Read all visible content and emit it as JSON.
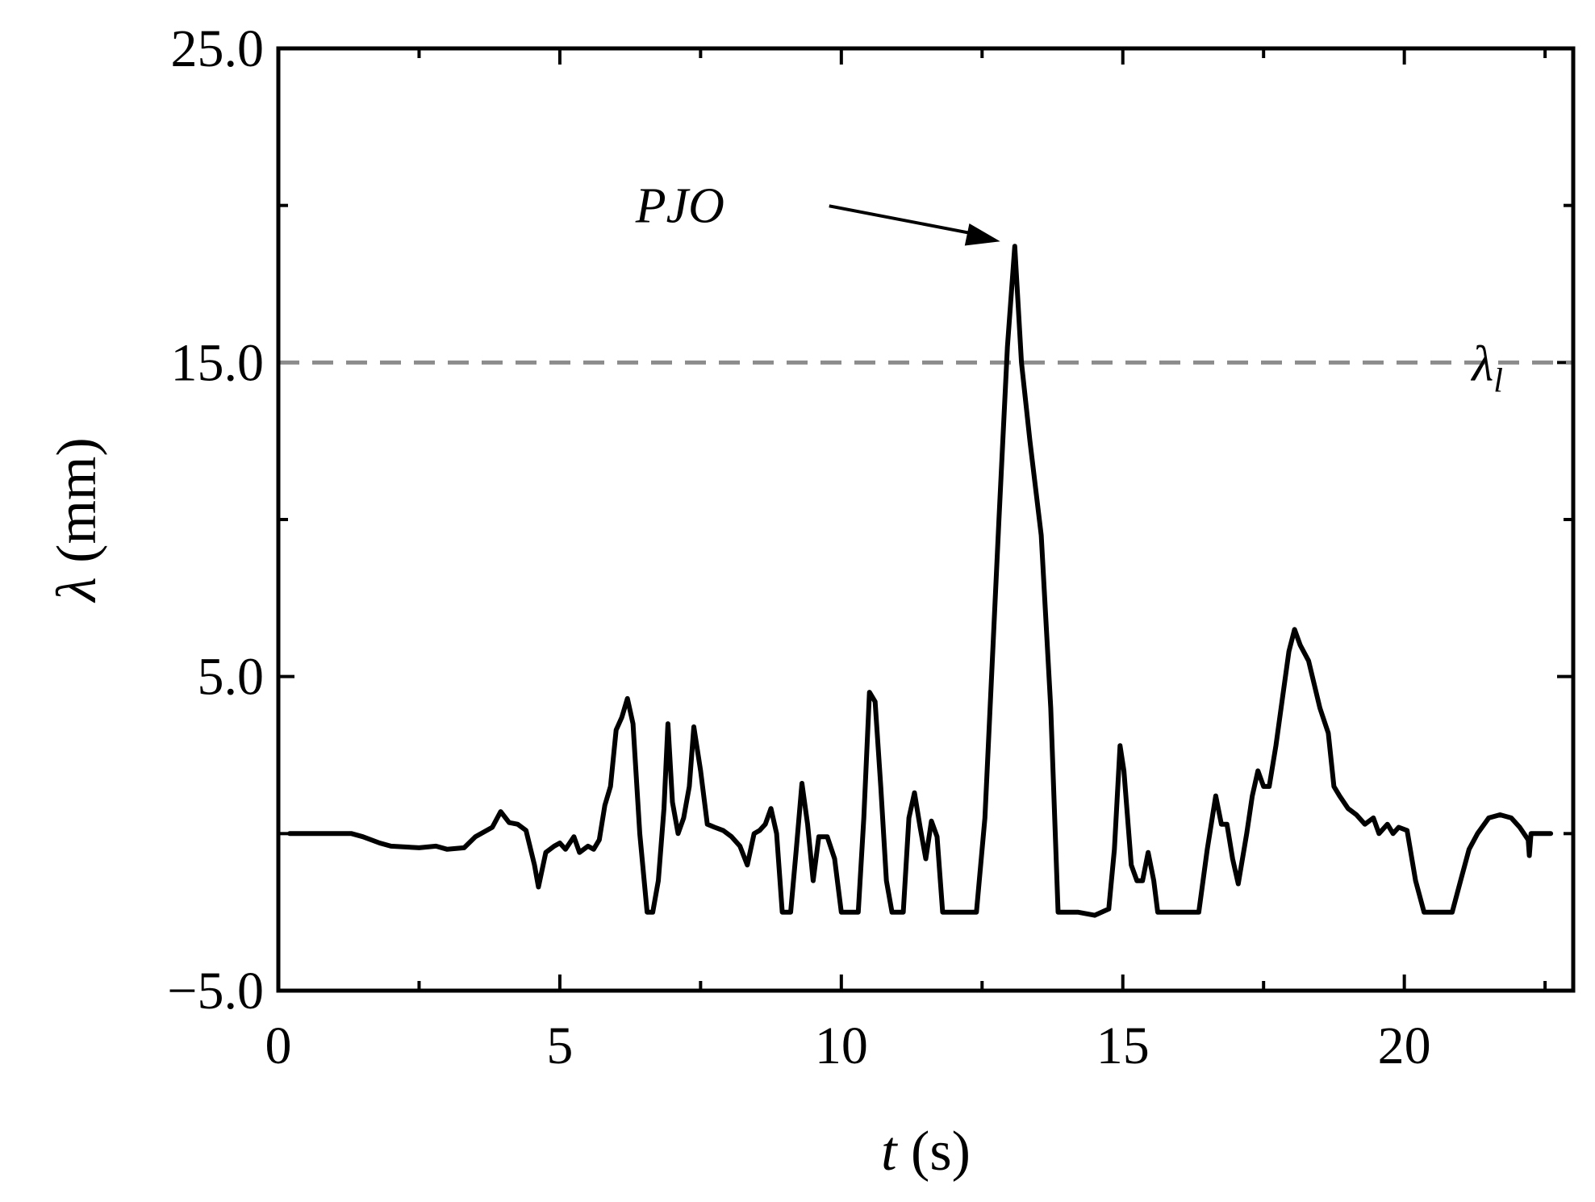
{
  "chart_data": {
    "type": "line",
    "title": "",
    "xlabel": {
      "symbol": "t",
      "unit": " (s)"
    },
    "ylabel": {
      "symbol": "λ",
      "unit": " (mm)"
    },
    "xlim": [
      0,
      23
    ],
    "ylim": [
      -5,
      25
    ],
    "xticks": [
      0,
      5,
      10,
      15,
      20
    ],
    "yticks": [
      -5,
      5,
      15,
      25
    ],
    "xtick_labels": [
      "0",
      "5",
      "10",
      "15",
      "20"
    ],
    "ytick_labels": [
      "−5.0",
      "5.0",
      "15.0",
      "25.0"
    ],
    "grid": false,
    "series": [
      {
        "color": "#000000",
        "points": [
          [
            0.2,
            0.0
          ],
          [
            1.3,
            0.0
          ],
          [
            1.5,
            -0.1
          ],
          [
            1.8,
            -0.3
          ],
          [
            2.0,
            -0.4
          ],
          [
            2.5,
            -0.45
          ],
          [
            2.8,
            -0.4
          ],
          [
            3.0,
            -0.5
          ],
          [
            3.3,
            -0.45
          ],
          [
            3.5,
            -0.1
          ],
          [
            3.8,
            0.2
          ],
          [
            3.95,
            0.7
          ],
          [
            4.1,
            0.35
          ],
          [
            4.25,
            0.3
          ],
          [
            4.4,
            0.1
          ],
          [
            4.55,
            -1.0
          ],
          [
            4.62,
            -1.7
          ],
          [
            4.75,
            -0.6
          ],
          [
            4.9,
            -0.4
          ],
          [
            5.0,
            -0.3
          ],
          [
            5.1,
            -0.5
          ],
          [
            5.25,
            -0.1
          ],
          [
            5.35,
            -0.6
          ],
          [
            5.5,
            -0.4
          ],
          [
            5.6,
            -0.5
          ],
          [
            5.7,
            -0.2
          ],
          [
            5.8,
            0.9
          ],
          [
            5.9,
            1.5
          ],
          [
            6.0,
            3.3
          ],
          [
            6.1,
            3.7
          ],
          [
            6.2,
            4.3
          ],
          [
            6.3,
            3.5
          ],
          [
            6.42,
            0.0
          ],
          [
            6.55,
            -2.5
          ],
          [
            6.65,
            -2.5
          ],
          [
            6.75,
            -1.5
          ],
          [
            6.85,
            0.8
          ],
          [
            6.92,
            3.5
          ],
          [
            7.0,
            1.0
          ],
          [
            7.1,
            0.0
          ],
          [
            7.2,
            0.5
          ],
          [
            7.3,
            1.5
          ],
          [
            7.38,
            3.4
          ],
          [
            7.5,
            2.0
          ],
          [
            7.62,
            0.3
          ],
          [
            7.75,
            0.2
          ],
          [
            7.9,
            0.1
          ],
          [
            8.05,
            -0.1
          ],
          [
            8.2,
            -0.4
          ],
          [
            8.33,
            -1.0
          ],
          [
            8.45,
            0.0
          ],
          [
            8.55,
            0.1
          ],
          [
            8.65,
            0.3
          ],
          [
            8.75,
            0.8
          ],
          [
            8.85,
            0.0
          ],
          [
            8.95,
            -2.5
          ],
          [
            9.1,
            -2.5
          ],
          [
            9.2,
            -0.5
          ],
          [
            9.3,
            1.6
          ],
          [
            9.4,
            0.3
          ],
          [
            9.5,
            -1.5
          ],
          [
            9.6,
            -0.1
          ],
          [
            9.75,
            -0.1
          ],
          [
            9.88,
            -0.8
          ],
          [
            10.0,
            -2.5
          ],
          [
            10.3,
            -2.5
          ],
          [
            10.4,
            0.5
          ],
          [
            10.5,
            4.5
          ],
          [
            10.6,
            4.2
          ],
          [
            10.7,
            1.5
          ],
          [
            10.8,
            -1.5
          ],
          [
            10.9,
            -2.5
          ],
          [
            11.1,
            -2.5
          ],
          [
            11.2,
            0.5
          ],
          [
            11.3,
            1.3
          ],
          [
            11.4,
            0.2
          ],
          [
            11.5,
            -0.8
          ],
          [
            11.6,
            0.4
          ],
          [
            11.7,
            -0.1
          ],
          [
            11.8,
            -2.5
          ],
          [
            12.4,
            -2.5
          ],
          [
            12.55,
            0.5
          ],
          [
            12.8,
            10.0
          ],
          [
            12.95,
            15.5
          ],
          [
            13.08,
            18.7
          ],
          [
            13.2,
            15.0
          ],
          [
            13.35,
            12.5
          ],
          [
            13.55,
            9.5
          ],
          [
            13.72,
            4.0
          ],
          [
            13.85,
            -2.5
          ],
          [
            14.2,
            -2.5
          ],
          [
            14.5,
            -2.6
          ],
          [
            14.75,
            -2.4
          ],
          [
            14.85,
            -0.5
          ],
          [
            14.95,
            2.8
          ],
          [
            15.02,
            2.0
          ],
          [
            15.15,
            -1.0
          ],
          [
            15.25,
            -1.5
          ],
          [
            15.35,
            -1.5
          ],
          [
            15.45,
            -0.6
          ],
          [
            15.55,
            -1.5
          ],
          [
            15.62,
            -2.5
          ],
          [
            16.35,
            -2.5
          ],
          [
            16.5,
            -0.5
          ],
          [
            16.65,
            1.2
          ],
          [
            16.75,
            0.3
          ],
          [
            16.85,
            0.3
          ],
          [
            16.95,
            -0.8
          ],
          [
            17.05,
            -1.6
          ],
          [
            17.2,
            0.0
          ],
          [
            17.3,
            1.2
          ],
          [
            17.4,
            2.0
          ],
          [
            17.5,
            1.5
          ],
          [
            17.6,
            1.5
          ],
          [
            17.72,
            2.8
          ],
          [
            17.85,
            4.5
          ],
          [
            17.95,
            5.8
          ],
          [
            18.05,
            6.5
          ],
          [
            18.15,
            6.0
          ],
          [
            18.3,
            5.5
          ],
          [
            18.5,
            4.0
          ],
          [
            18.65,
            3.2
          ],
          [
            18.75,
            1.5
          ],
          [
            18.85,
            1.2
          ],
          [
            19.0,
            0.8
          ],
          [
            19.15,
            0.6
          ],
          [
            19.3,
            0.3
          ],
          [
            19.45,
            0.5
          ],
          [
            19.55,
            0.0
          ],
          [
            19.7,
            0.3
          ],
          [
            19.8,
            0.0
          ],
          [
            19.9,
            0.2
          ],
          [
            20.05,
            0.1
          ],
          [
            20.2,
            -1.5
          ],
          [
            20.35,
            -2.5
          ],
          [
            20.85,
            -2.5
          ],
          [
            21.0,
            -1.5
          ],
          [
            21.15,
            -0.5
          ],
          [
            21.3,
            0.0
          ],
          [
            21.5,
            0.5
          ],
          [
            21.7,
            0.6
          ],
          [
            21.9,
            0.5
          ],
          [
            22.05,
            0.2
          ],
          [
            22.2,
            -0.2
          ],
          [
            22.22,
            -0.7
          ],
          [
            22.25,
            0.0
          ],
          [
            22.6,
            0.0
          ]
        ]
      }
    ],
    "threshold": {
      "value": 15,
      "label": "λ",
      "label_sub": "l",
      "label_x": 21.2,
      "color": "#8c8c8c"
    },
    "annotation": {
      "text": "PJO",
      "x": 13.08,
      "y": 18.7
    }
  }
}
